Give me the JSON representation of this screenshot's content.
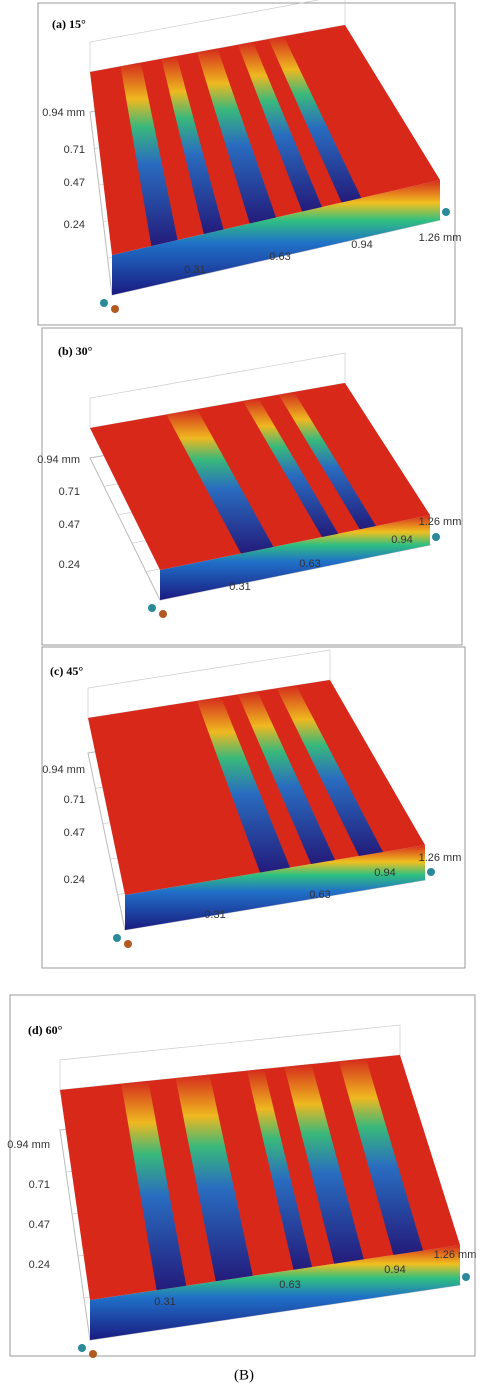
{
  "panels": [
    {
      "label": "(a) 15°",
      "y_labels": [
        "0.94 mm",
        "0.71",
        "0.47",
        "0.24"
      ],
      "x_labels": [
        "0.31",
        "0.63",
        "0.94",
        "1.26 mm"
      ]
    },
    {
      "label": "(b) 30°",
      "y_labels": [
        "0.94 mm",
        "0.71",
        "0.47",
        "0.24"
      ],
      "x_labels": [
        "0.31",
        "0.63",
        "0.94",
        "1.26 mm"
      ]
    },
    {
      "label": "(c) 45°",
      "y_labels": [
        "0.94 mm",
        "0.71",
        "0.47",
        "0.24"
      ],
      "x_labels": [
        "0.31",
        "0.63",
        "0.94",
        "1.26 mm"
      ]
    },
    {
      "label": "(d) 60°",
      "y_labels": [
        "0.94 mm",
        "0.71",
        "0.47",
        "0.24"
      ],
      "x_labels": [
        "0.31",
        "0.63",
        "0.94",
        "1.26 mm"
      ]
    }
  ],
  "caption": "(B)"
}
